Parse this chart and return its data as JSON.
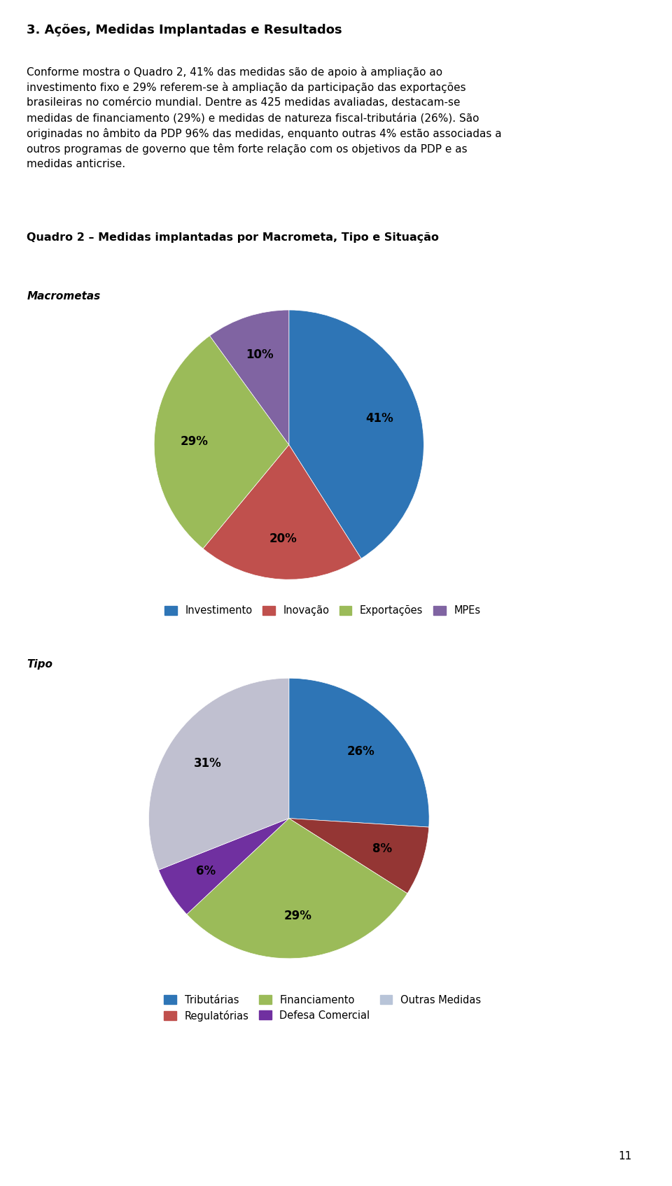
{
  "title_section": "3. Ações, Medidas Implantadas e Resultados",
  "body_text": "Conforme mostra o Quadro 2, 41% das medidas são de apoio à ampliação ao\ninvestimento fixo e 29% referem-se à ampliação da participação das exportações\nbrasileiras no comércio mundial. Dentre as 425 medidas avaliadas, destacam-se\nmedidas de financiamento (29%) e medidas de natureza fiscal-tributária (26%). São\noriginadas no âmbito da PDP 96% das medidas, enquanto outras 4% estão associadas a\noutros programas de governo que têm forte relação com os objetivos da PDP e as\nmedidas anticrise.",
  "quadro_title": "Quadro 2 – Medidas implantadas por Macrometa, Tipo e Situação",
  "chart1_label": "Macrometas",
  "chart1_values": [
    41,
    20,
    29,
    10
  ],
  "chart1_labels": [
    "41%",
    "20%",
    "29%",
    "10%"
  ],
  "chart1_colors": [
    "#2E75B6",
    "#C0504D",
    "#9BBB59",
    "#8064A2"
  ],
  "chart1_legend": [
    "Investimento",
    "Inovação",
    "Exportações",
    "MPEs"
  ],
  "chart1_legend_colors": [
    "#2E75B6",
    "#C0504D",
    "#9BBB59",
    "#8064A2"
  ],
  "chart1_startangle": 90,
  "chart2_label": "Tipo",
  "chart2_values": [
    26,
    8,
    29,
    6,
    31
  ],
  "chart2_labels": [
    "26%",
    "8%",
    "29%",
    "6%",
    "31%"
  ],
  "chart2_colors": [
    "#2E75B6",
    "#943634",
    "#9BBB59",
    "#7030A0",
    "#C0C0D0"
  ],
  "chart2_legend": [
    "Tributárias",
    "Regulatórias",
    "Financiamento",
    "Defesa Comercial",
    "Outras Medidas"
  ],
  "chart2_legend_colors": [
    "#2E75B6",
    "#C0504D",
    "#9BBB59",
    "#7030A0",
    "#B8C4D8"
  ],
  "chart2_startangle": 90,
  "background_color": "#FFFFFF",
  "page_number": "11"
}
